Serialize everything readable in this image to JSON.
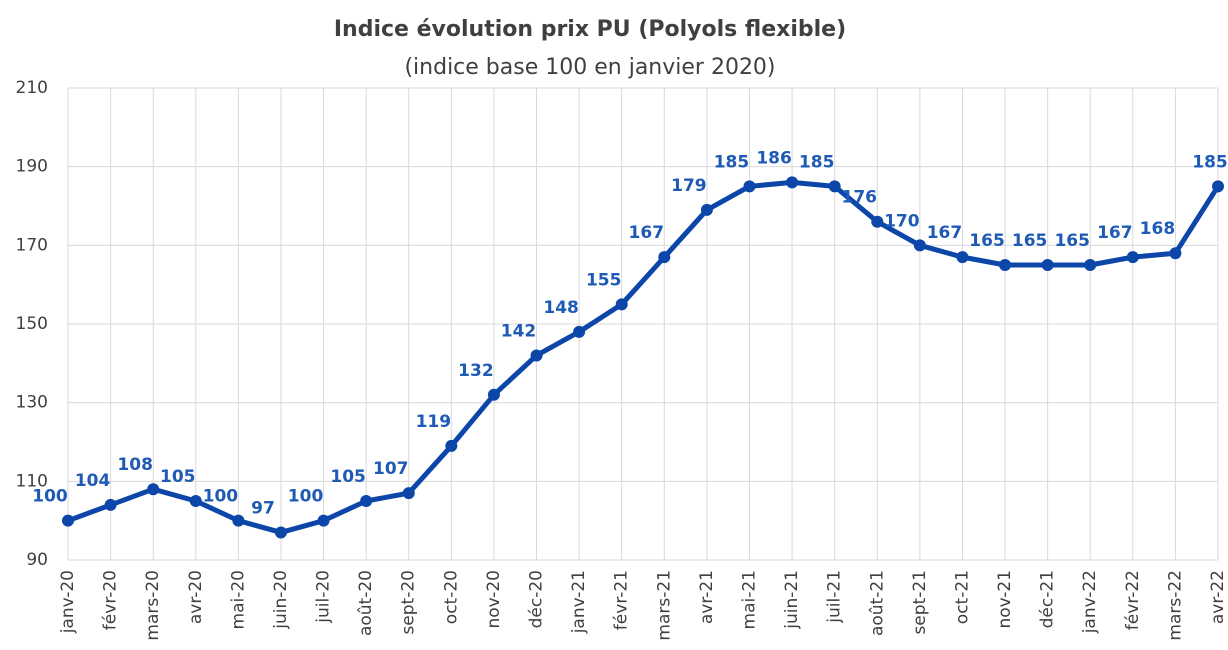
{
  "chart_data": {
    "type": "line",
    "title": "Indice évolution prix PU (Polyols flexible)",
    "subtitle": "(indice base 100 en janvier 2020)",
    "categories": [
      "janv-20",
      "févr-20",
      "mars-20",
      "avr-20",
      "mai-20",
      "juin-20",
      "juil-20",
      "août-20",
      "sept-20",
      "oct-20",
      "nov-20",
      "déc-20",
      "janv-21",
      "févr-21",
      "mars-21",
      "avr-21",
      "mai-21",
      "juin-21",
      "juil-21",
      "août-21",
      "sept-21",
      "oct-21",
      "nov-21",
      "déc-21",
      "janv-22",
      "févr-22",
      "mars-22",
      "avr-22"
    ],
    "values": [
      100,
      104,
      108,
      105,
      100,
      97,
      100,
      105,
      107,
      119,
      132,
      142,
      148,
      155,
      167,
      179,
      185,
      186,
      185,
      176,
      170,
      167,
      165,
      165,
      165,
      167,
      168,
      185
    ],
    "color": "#0b46a8",
    "label_color": "#1f5bb5",
    "ylim": [
      90,
      210
    ],
    "yticks": [
      90,
      110,
      130,
      150,
      170,
      190,
      210
    ],
    "grid": true
  }
}
